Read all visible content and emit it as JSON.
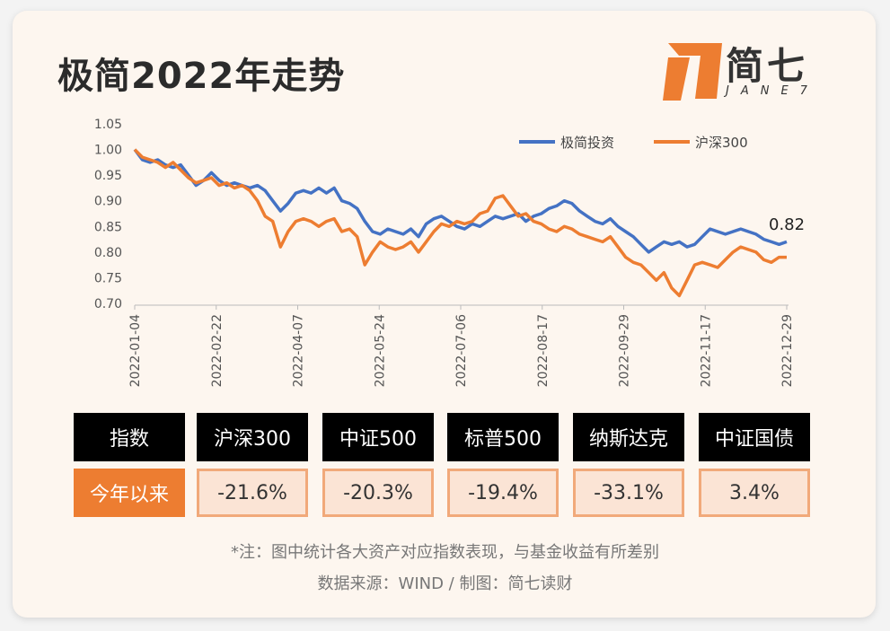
{
  "title": "极简2022年走势",
  "logo": {
    "word": "简七",
    "sub": "JANE7"
  },
  "colors": {
    "series_blue": "#4472c4",
    "series_orange": "#ed7d31",
    "header_bg": "#000000",
    "value_bg": "#fbe4d5",
    "value_border": "#f1a97a"
  },
  "chart_data": {
    "type": "line",
    "ylim": [
      0.7,
      1.05
    ],
    "y_ticks": [
      "1.05",
      "1.00",
      "0.95",
      "0.90",
      "0.85",
      "0.80",
      "0.75",
      "0.70"
    ],
    "x_ticks": [
      "2022-01-04",
      "2022-02-22",
      "2022-04-07",
      "2022-05-24",
      "2022-07-06",
      "2022-08-17",
      "2022-09-29",
      "2022-11-17",
      "2022-12-29"
    ],
    "legend_position": "top-right",
    "end_annotation": "0.82",
    "series": [
      {
        "name": "极简投资",
        "color": "#4472c4",
        "values": [
          1.0,
          0.98,
          0.975,
          0.98,
          0.97,
          0.965,
          0.97,
          0.95,
          0.93,
          0.94,
          0.955,
          0.94,
          0.93,
          0.935,
          0.93,
          0.925,
          0.93,
          0.92,
          0.9,
          0.88,
          0.895,
          0.915,
          0.92,
          0.915,
          0.925,
          0.915,
          0.925,
          0.9,
          0.895,
          0.885,
          0.86,
          0.84,
          0.835,
          0.845,
          0.84,
          0.835,
          0.845,
          0.83,
          0.855,
          0.865,
          0.87,
          0.86,
          0.85,
          0.845,
          0.855,
          0.85,
          0.86,
          0.87,
          0.865,
          0.87,
          0.875,
          0.86,
          0.87,
          0.875,
          0.885,
          0.89,
          0.9,
          0.895,
          0.88,
          0.87,
          0.86,
          0.855,
          0.865,
          0.85,
          0.84,
          0.83,
          0.815,
          0.8,
          0.81,
          0.82,
          0.815,
          0.82,
          0.81,
          0.815,
          0.83,
          0.845,
          0.84,
          0.835,
          0.84,
          0.845,
          0.84,
          0.835,
          0.825,
          0.82,
          0.815,
          0.82
        ]
      },
      {
        "name": "沪深300",
        "color": "#ed7d31",
        "values": [
          1.0,
          0.985,
          0.98,
          0.975,
          0.965,
          0.975,
          0.96,
          0.945,
          0.935,
          0.94,
          0.945,
          0.93,
          0.935,
          0.925,
          0.93,
          0.92,
          0.9,
          0.87,
          0.86,
          0.81,
          0.84,
          0.86,
          0.865,
          0.86,
          0.85,
          0.86,
          0.865,
          0.84,
          0.845,
          0.83,
          0.775,
          0.8,
          0.82,
          0.81,
          0.805,
          0.81,
          0.82,
          0.8,
          0.82,
          0.84,
          0.855,
          0.85,
          0.86,
          0.855,
          0.86,
          0.875,
          0.88,
          0.905,
          0.91,
          0.89,
          0.87,
          0.875,
          0.86,
          0.855,
          0.845,
          0.84,
          0.85,
          0.845,
          0.835,
          0.83,
          0.825,
          0.82,
          0.83,
          0.81,
          0.79,
          0.78,
          0.775,
          0.76,
          0.745,
          0.76,
          0.73,
          0.715,
          0.745,
          0.775,
          0.78,
          0.775,
          0.77,
          0.785,
          0.8,
          0.81,
          0.805,
          0.8,
          0.785,
          0.78,
          0.79,
          0.79
        ]
      }
    ]
  },
  "table": {
    "headers": [
      "指数",
      "沪深300",
      "中证500",
      "标普500",
      "纳斯达克",
      "中证国债"
    ],
    "row_label": "今年以来",
    "values": [
      "-21.6%",
      "-20.3%",
      "-19.4%",
      "-33.1%",
      "3.4%"
    ]
  },
  "footnotes": {
    "note": "*注：图中统计各大资产对应指数表现，与基金收益有所差别",
    "source": "数据来源：WIND / 制图：简七读财"
  }
}
